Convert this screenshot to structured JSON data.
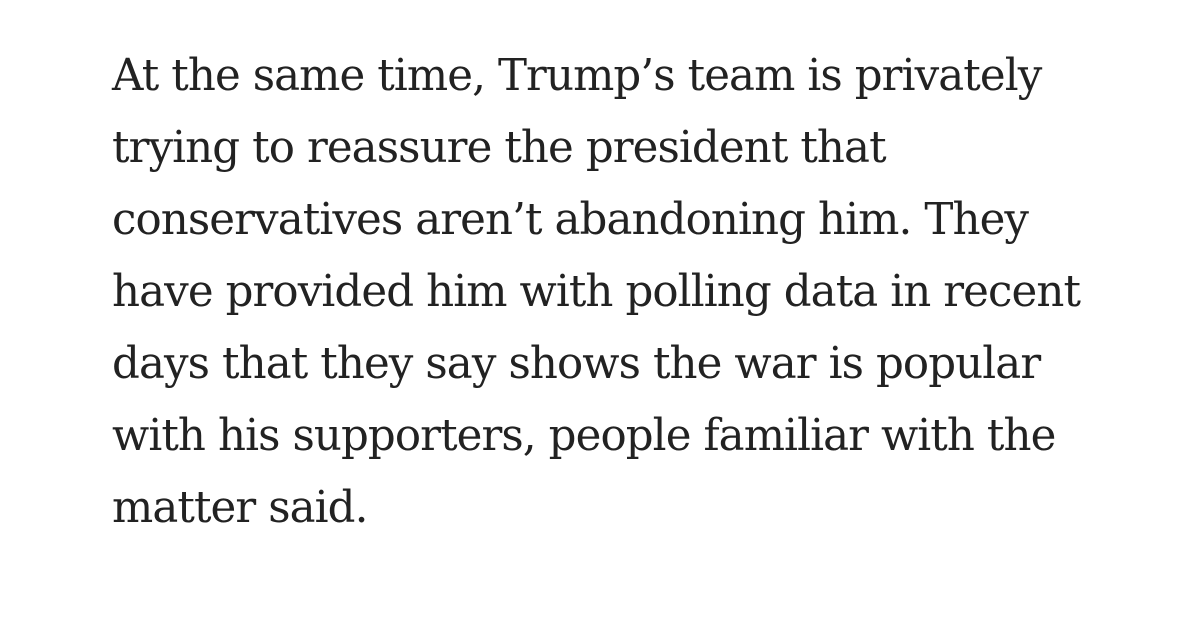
{
  "article": {
    "paragraph_lines": [
      "At the same time, Trump’s team is privately",
      "trying to reassure the president that",
      "conservatives aren’t abandoning him. They",
      "have provided him with polling data in recent",
      "days that they say shows the war is popular",
      "with his supporters, people familiar with the",
      "matter said."
    ]
  },
  "colors": {
    "background": "#ffffff",
    "text": "#222222"
  }
}
